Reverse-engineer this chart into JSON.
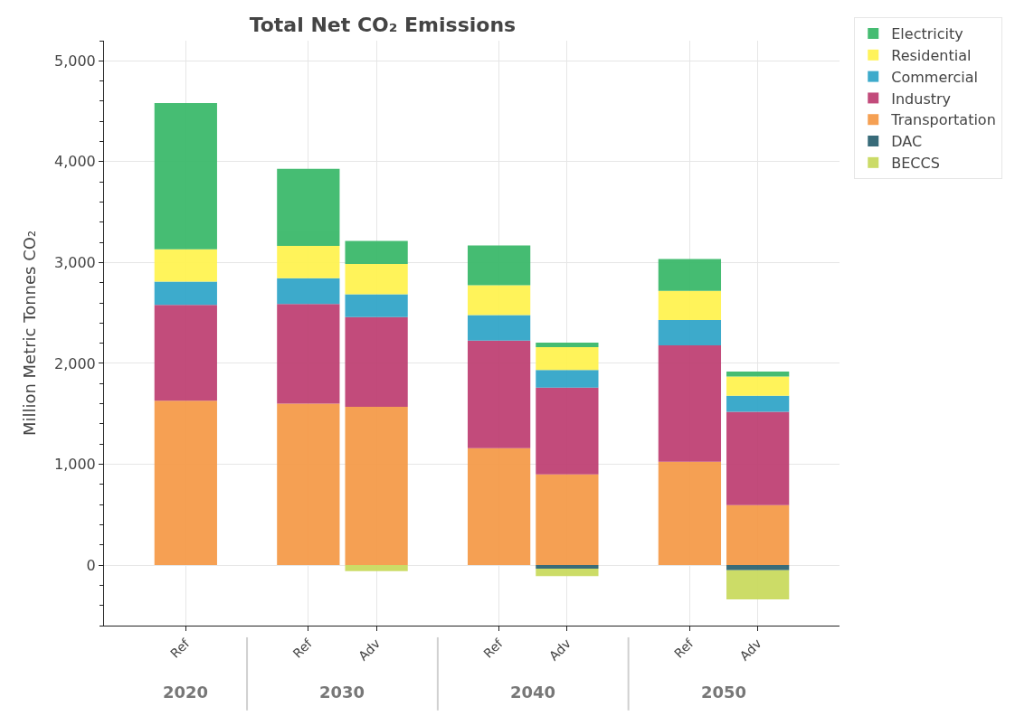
{
  "chart_data": {
    "type": "bar",
    "stacked": true,
    "title": "Total Net CO₂ Emissions",
    "ylabel": "Million Metric Tonnes CO₂",
    "categories": [
      "Ref",
      "Ref",
      "Adv",
      "Ref",
      "Adv",
      "Ref",
      "Adv"
    ],
    "annotations": [
      "2020",
      "2030",
      "2040",
      "2050"
    ],
    "series": [
      {
        "name": "Transportation",
        "color": "#f59b4a",
        "values": [
          1630,
          1600,
          1570,
          1160,
          900,
          1025,
          595
        ]
      },
      {
        "name": "Industry",
        "color": "#bf4274",
        "values": [
          950,
          990,
          890,
          1065,
          860,
          1155,
          925
        ]
      },
      {
        "name": "Commercial",
        "color": "#33a6c9",
        "values": [
          232,
          255,
          225,
          255,
          175,
          250,
          160
        ]
      },
      {
        "name": "Residential",
        "color": "#fff352",
        "values": [
          320,
          320,
          300,
          295,
          225,
          290,
          190
        ]
      },
      {
        "name": "Electricity",
        "color": "#3cb96b",
        "values": [
          1449,
          765,
          230,
          395,
          45,
          315,
          50
        ]
      },
      {
        "name": "DAC",
        "color": "#2e6472",
        "values": [
          null,
          null,
          null,
          null,
          -35,
          null,
          -50
        ]
      },
      {
        "name": "BECCS",
        "color": "#c9da5f",
        "values": [
          null,
          null,
          -60,
          null,
          -75,
          null,
          -290
        ]
      }
    ],
    "ylim": [
      -600,
      5200
    ],
    "yticks": [
      {
        "value": 0,
        "label": "0"
      },
      {
        "value": 1000,
        "label": "1,000"
      },
      {
        "value": 2000,
        "label": "2,000"
      },
      {
        "value": 3000,
        "label": "3,000"
      },
      {
        "value": 4000,
        "label": "4,000"
      },
      {
        "value": 5000,
        "label": "5,000"
      }
    ],
    "grid": true,
    "legend": "top right"
  }
}
